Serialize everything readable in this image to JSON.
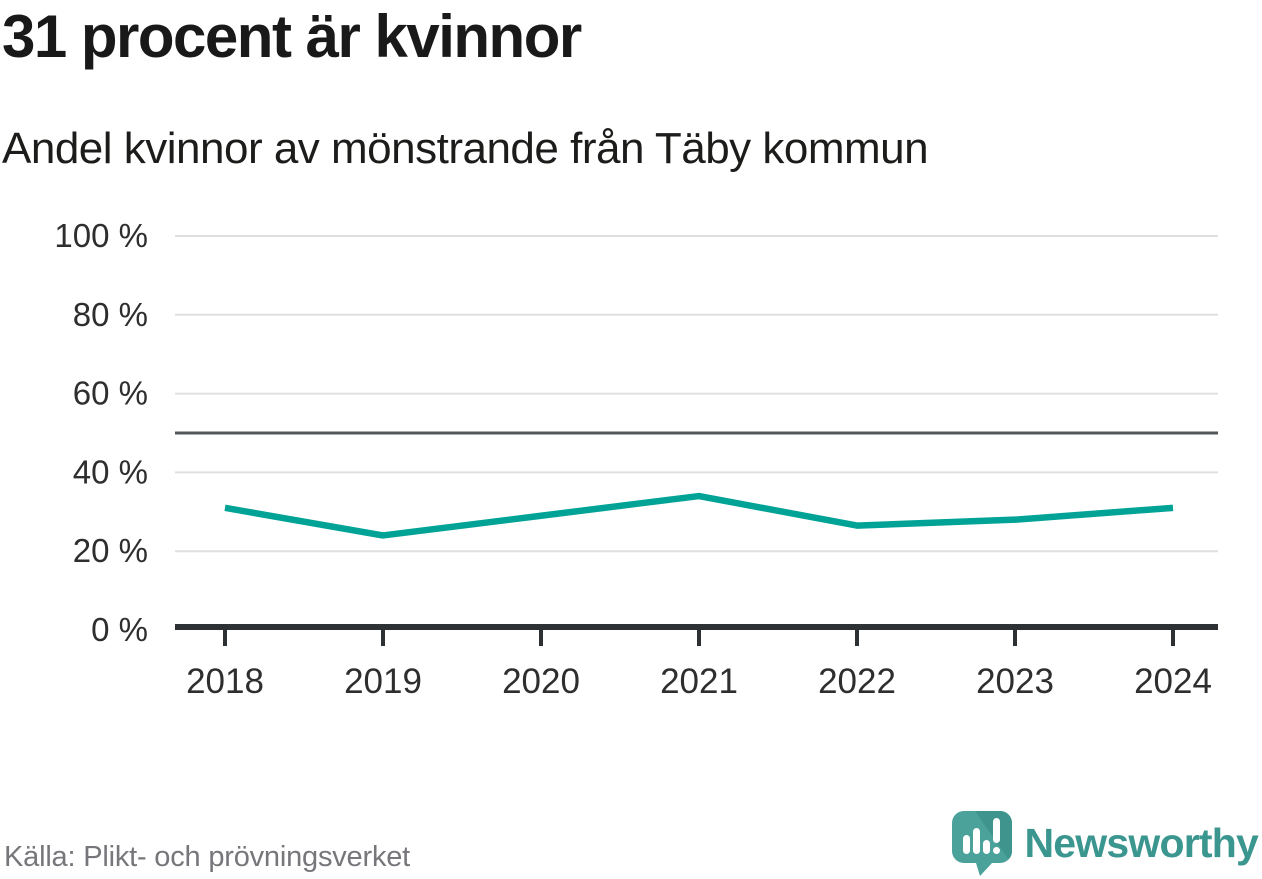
{
  "header": {
    "title": "31 procent är kvinnor",
    "subtitle": "Andel kvinnor av mönstrande från Täby kommun"
  },
  "chart_data": {
    "type": "line",
    "title": "31 procent är kvinnor",
    "subtitle": "Andel kvinnor av mönstrande från Täby kommun",
    "x": [
      2018,
      2019,
      2020,
      2021,
      2022,
      2023,
      2024
    ],
    "xtick_labels": [
      "2018",
      "2019",
      "2020",
      "2021",
      "2022",
      "2023",
      "2024"
    ],
    "series": [
      {
        "name": "Andel kvinnor av mönstrande",
        "values": [
          31,
          24,
          29,
          34,
          26.5,
          28,
          31
        ]
      }
    ],
    "xlabel": "",
    "ylabel": "",
    "ylim": [
      0,
      100
    ],
    "yticks": [
      {
        "value": 0,
        "label": "0 %"
      },
      {
        "value": 20,
        "label": "20 %"
      },
      {
        "value": 40,
        "label": "40 %"
      },
      {
        "value": 60,
        "label": "60 %"
      },
      {
        "value": 80,
        "label": "80 %"
      },
      {
        "value": 100,
        "label": "100 %"
      }
    ],
    "reference_line": {
      "value": 50
    },
    "grid": true,
    "legend": false,
    "line_color": "#00a396"
  },
  "footer": {
    "source": "Källa: Plikt- och prövningsverket",
    "brand": "Newsworthy"
  },
  "colors": {
    "accent_line": "#00a396",
    "reference_line": "#53575b",
    "gridline": "#e0e0e0",
    "axis": "#2e3134",
    "tick_label": "#2e2e2e",
    "source_text": "#76767b",
    "brand_teal": "#3b968f",
    "logo_fill": "#4aa29b",
    "logo_fill_dark": "#3f958d"
  }
}
